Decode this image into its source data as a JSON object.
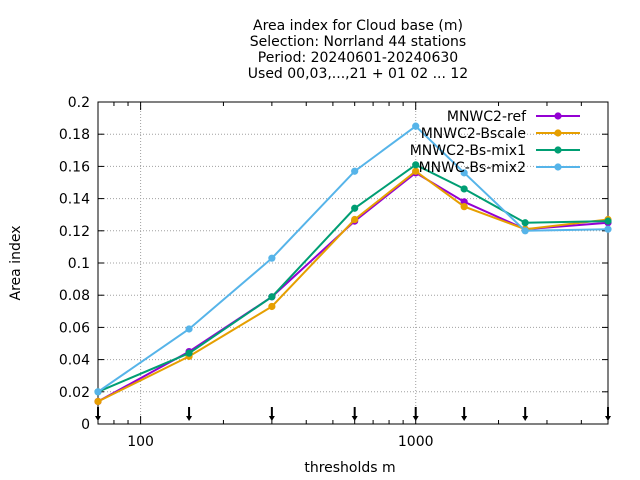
{
  "chart_data": {
    "type": "line",
    "title_lines": [
      "Area index  for Cloud base (m)",
      "Selection: Norrland      44 stations",
      "Period: 20240601-20240630",
      "Used 00,03,...,21 + 01 02 ... 12"
    ],
    "xlabel": "thresholds m",
    "ylabel": "Area index",
    "xscale": "log",
    "xlim": [
      70,
      5000
    ],
    "ylim": [
      0,
      0.2
    ],
    "x_tick_labels": [
      {
        "value": 100,
        "label": "100"
      },
      {
        "value": 1000,
        "label": "1000"
      }
    ],
    "y_tick_labels": [
      "0",
      "0.02",
      "0.04",
      "0.06",
      "0.08",
      "0.1",
      "0.12",
      "0.14",
      "0.16",
      "0.18",
      "0.2"
    ],
    "y_ticks": [
      0,
      0.02,
      0.04,
      0.06,
      0.08,
      0.1,
      0.12,
      0.14,
      0.16,
      0.18,
      0.2
    ],
    "grid": true,
    "legend_position": "top-right",
    "threshold_markers": [
      70,
      150,
      300,
      600,
      1000,
      1500,
      2500,
      5000
    ],
    "x": [
      70,
      150,
      300,
      600,
      1000,
      1500,
      2500,
      5000
    ],
    "series": [
      {
        "name": "MNWC2-ref",
        "color": "#9400d3",
        "values": [
          0.014,
          0.045,
          0.079,
          0.126,
          0.156,
          0.138,
          0.121,
          0.125
        ]
      },
      {
        "name": "MNWC2-Bscale",
        "color": "#e69f00",
        "values": [
          0.014,
          0.042,
          0.073,
          0.127,
          0.157,
          0.135,
          0.121,
          0.127
        ]
      },
      {
        "name": "MNWC2-Bs-mix1",
        "color": "#009e73",
        "values": [
          0.02,
          0.044,
          0.079,
          0.134,
          0.161,
          0.146,
          0.125,
          0.126
        ]
      },
      {
        "name": "MNWC-Bs-mix2",
        "color": "#56b4e9",
        "values": [
          0.02,
          0.059,
          0.103,
          0.157,
          0.185,
          0.156,
          0.12,
          0.121
        ]
      }
    ]
  }
}
